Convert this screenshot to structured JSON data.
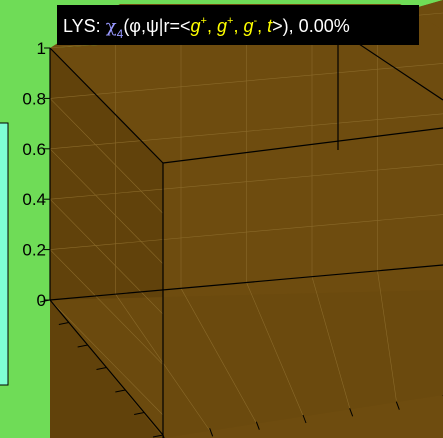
{
  "colors": {
    "figure_background": "#6fdc57",
    "cube_fill": "#6e4c0f",
    "cube_fill_side": "#61420b",
    "cube_edge": "#000000",
    "grid_line": "#8a6a2a",
    "title_box_background": "#000000",
    "title_text": "#ffffff",
    "title_chi": "#9999ff",
    "title_genotype": "#ffff00",
    "colorbar_fill": "#7fffd4"
  },
  "title": {
    "prefix": "LYS: ",
    "chi": "χ",
    "chi_subscript": "4",
    "args_open": "(φ,ψ|r=<",
    "g1": "g",
    "g1_sup": "+",
    "sep1": ", ",
    "g2": "g",
    "g2_sup": "+",
    "sep2": ", ",
    "g3": "g",
    "g3_sup": "-",
    "sep3": ", ",
    "t": "t",
    "args_close": ">), 0.00%"
  },
  "chart_data": {
    "type": "3d-surface",
    "z_ticks": [
      "0",
      "0.2",
      "0.4",
      "0.6",
      "0.8",
      "1"
    ],
    "z_values": [
      0,
      0.2,
      0.4,
      0.6,
      0.8,
      1
    ],
    "zlim": [
      0,
      1
    ],
    "percentage": "0.00%",
    "grid": true
  }
}
